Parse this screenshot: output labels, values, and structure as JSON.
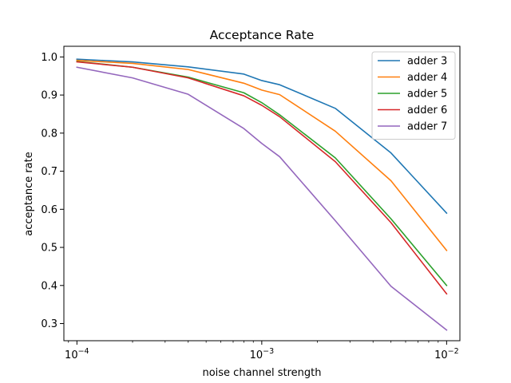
{
  "chart_data": {
    "type": "line",
    "title": "Acceptance Rate",
    "xlabel": "noise channel strength",
    "ylabel": "acceptance rate",
    "xscale": "log",
    "xlim": [
      8.5e-05,
      0.0118
    ],
    "ylim": [
      0.255,
      1.028
    ],
    "x_ticks": [
      {
        "value": 0.0001,
        "base": "10",
        "exp": "−4"
      },
      {
        "value": 0.001,
        "base": "10",
        "exp": "−3"
      },
      {
        "value": 0.01,
        "base": "10",
        "exp": "−2"
      }
    ],
    "y_ticks": [
      0.3,
      0.4,
      0.5,
      0.6,
      0.7,
      0.8,
      0.9,
      1.0
    ],
    "y_tick_labels": [
      "0.3",
      "0.4",
      "0.5",
      "0.6",
      "0.7",
      "0.8",
      "0.9",
      "1.0"
    ],
    "grid": false,
    "legend_position": "top-right",
    "x": [
      0.0001,
      0.0002,
      0.0004,
      0.0008,
      0.001,
      0.00125,
      0.0025,
      0.005,
      0.01
    ],
    "series": [
      {
        "name": "adder 3",
        "color": "#1f77b4",
        "values": [
          0.994,
          0.987,
          0.974,
          0.955,
          0.938,
          0.927,
          0.865,
          0.748,
          0.59
        ]
      },
      {
        "name": "adder 4",
        "color": "#ff7f0e",
        "values": [
          0.991,
          0.983,
          0.967,
          0.931,
          0.913,
          0.901,
          0.805,
          0.675,
          0.492
        ]
      },
      {
        "name": "adder 5",
        "color": "#2ca02c",
        "values": [
          0.988,
          0.973,
          0.947,
          0.906,
          0.88,
          0.848,
          0.735,
          0.575,
          0.4
        ]
      },
      {
        "name": "adder 6",
        "color": "#d62728",
        "values": [
          0.987,
          0.973,
          0.945,
          0.898,
          0.873,
          0.843,
          0.725,
          0.565,
          0.378
        ]
      },
      {
        "name": "adder 7",
        "color": "#9467bd",
        "values": [
          0.973,
          0.945,
          0.902,
          0.812,
          0.773,
          0.738,
          0.57,
          0.398,
          0.283
        ]
      }
    ]
  }
}
